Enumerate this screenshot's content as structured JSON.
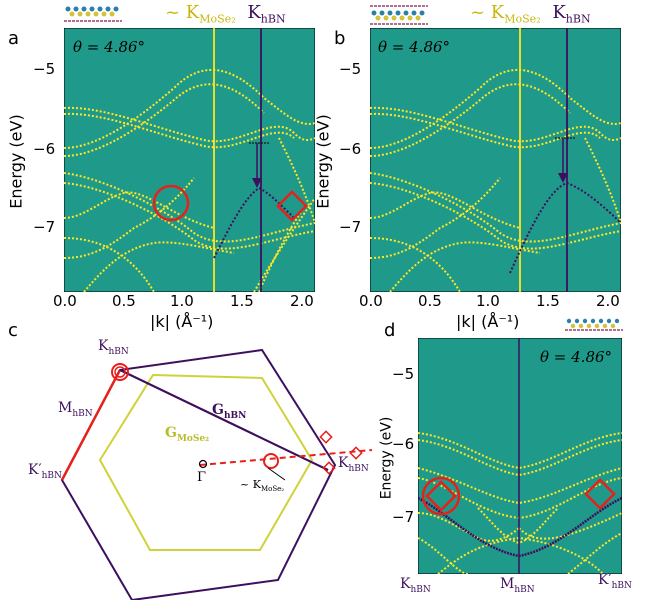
{
  "panel_a": {
    "label": "a",
    "legend_mosE2": "~ K",
    "legend_mosE2_sub": "MoSe₂",
    "legend_hbn": "K",
    "legend_hbn_sub": "hBN",
    "angle": "θ = 4.86°",
    "ylabel": "Energy (eV)",
    "xlabel": "|k| (Å⁻¹)",
    "yticks": [
      "−5",
      "−6",
      "−7"
    ],
    "xticks": [
      "0.0",
      "0.5",
      "1.0",
      "1.5",
      "2.0"
    ]
  },
  "panel_b": {
    "label": "b",
    "legend_mosE2": "~ K",
    "legend_mosE2_sub": "MoSe₂",
    "legend_hbn": "K",
    "legend_hbn_sub": "hBN",
    "angle": "θ = 4.86°",
    "ylabel": "Energy (eV)",
    "xlabel": "|k| (Å⁻¹)",
    "yticks": [
      "−5",
      "−6",
      "−7"
    ],
    "xticks": [
      "0.0",
      "0.5",
      "1.0",
      "1.5",
      "2.0"
    ]
  },
  "panel_c": {
    "label": "c",
    "k_hbn_top": "K",
    "k_hbn_top_sub": "hBN",
    "m_hbn": "M",
    "m_hbn_sub": "hBN",
    "kprime_hbn": "K′",
    "kprime_hbn_sub": "hBN",
    "k_hbn_right": "K",
    "k_hbn_right_sub": "hBN",
    "g_hbn": "G",
    "g_hbn_sub": "hBN",
    "g_mose2": "G",
    "g_mose2_sub": "MoSe₂",
    "gamma": "Γ",
    "k_mose2": "~ K",
    "k_mose2_sub": "MoSe₂"
  },
  "panel_d": {
    "label": "d",
    "angle": "θ = 4.86°",
    "ylabel": "Energy (eV)",
    "yticks": [
      "−5",
      "−6",
      "−7"
    ],
    "xtick_left": "K",
    "xtick_left_sub": "hBN",
    "xtick_mid": "M",
    "xtick_mid_sub": "hBN",
    "xtick_right": "K′",
    "xtick_right_sub": "hBN"
  },
  "colors": {
    "plot_bg": "#1f9a8a",
    "band_yellow": "#fde725",
    "hbn_purple": "#3d0f5e",
    "marker_red": "#e8201b",
    "hexagon_purple": "#3d0f5e",
    "hexagon_yellow": "#cfd23a"
  }
}
